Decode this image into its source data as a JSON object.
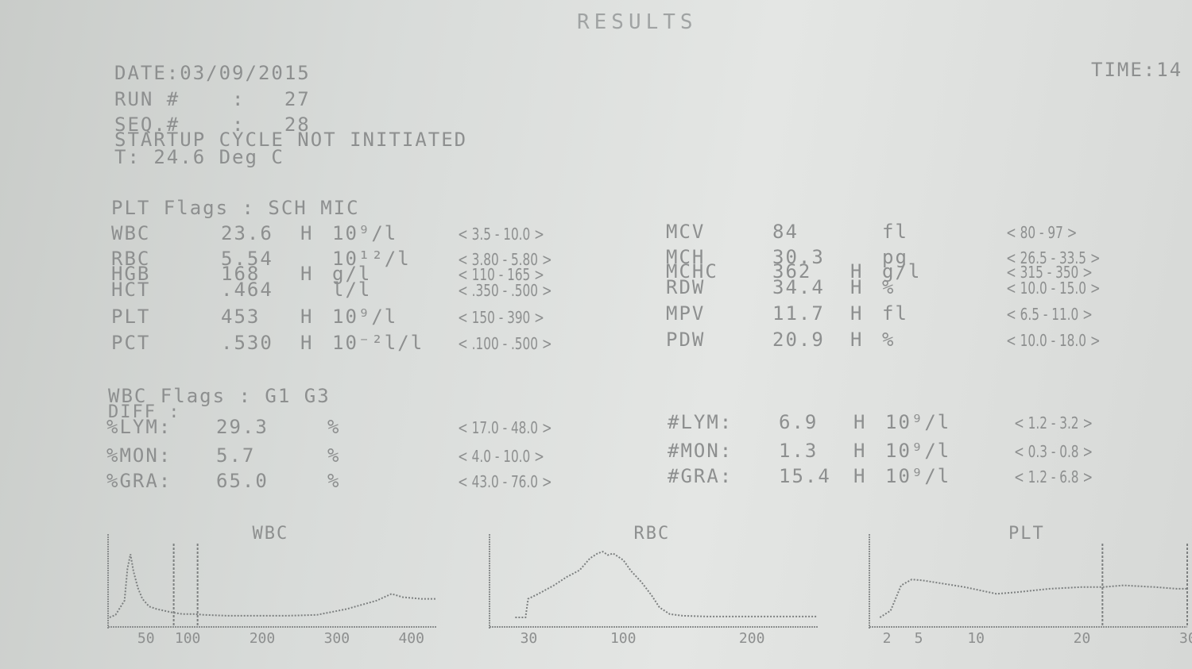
{
  "header": {
    "title": "RESULTS",
    "date": "DATE:03/09/2015",
    "time": "TIME:14",
    "run": "RUN #    :   27",
    "seq": "SEQ.#    :   28",
    "startup": "STARTUP CYCLE NOT INITIATED",
    "temp": "T: 24.6 Deg C"
  },
  "plt_flags": "PLT Flags : SCH MIC",
  "left_params": [
    {
      "name": "WBC",
      "value": "23.6",
      "flag": "H",
      "unit": "10⁹/l",
      "range": "< 3.5 - 10.0 >"
    },
    {
      "name": "RBC",
      "value": "5.54",
      "flag": "",
      "unit": "10¹²/l",
      "range": "< 3.80 - 5.80 >"
    },
    {
      "name": "HGB",
      "value": "168",
      "flag": "H",
      "unit": "g/l",
      "range": "< 110 - 165 >"
    },
    {
      "name": "HCT",
      "value": ".464",
      "flag": "",
      "unit": "l/l",
      "range": "< .350 - .500 >"
    },
    {
      "name": "PLT",
      "value": "453",
      "flag": "H",
      "unit": "10⁹/l",
      "range": "< 150 - 390 >"
    },
    {
      "name": "PCT",
      "value": ".530",
      "flag": "H",
      "unit": "10⁻²l/l",
      "range": "< .100 - .500 >"
    }
  ],
  "right_params": [
    {
      "name": "MCV",
      "value": "84",
      "flag": "",
      "unit": "fl",
      "range": "< 80 - 97 >"
    },
    {
      "name": "MCH",
      "value": "30.3",
      "flag": "",
      "unit": "pg",
      "range": "< 26.5 - 33.5 >"
    },
    {
      "name": "MCHC",
      "value": "362",
      "flag": "H",
      "unit": "g/l",
      "range": "< 315 - 350 >"
    },
    {
      "name": "RDW",
      "value": "34.4",
      "flag": "H",
      "unit": "%",
      "range": "< 10.0 - 15.0 >"
    },
    {
      "name": "MPV",
      "value": "11.7",
      "flag": "H",
      "unit": "fl",
      "range": "< 6.5 - 11.0 >"
    },
    {
      "name": "PDW",
      "value": "20.9",
      "flag": "H",
      "unit": "%",
      "range": "< 10.0 - 18.0 >"
    }
  ],
  "wbc_flags": "WBC Flags : G1 G3",
  "diff_label": "DIFF :",
  "diff_left": [
    {
      "name": "%LYM:",
      "value": "29.3",
      "flag": "",
      "unit": "%",
      "range": "< 17.0 - 48.0 >"
    },
    {
      "name": "%MON:",
      "value": "5.7",
      "flag": "",
      "unit": "%",
      "range": "< 4.0 - 10.0 >"
    },
    {
      "name": "%GRA:",
      "value": "65.0",
      "flag": "",
      "unit": "%",
      "range": "< 43.0 - 76.0 >"
    }
  ],
  "diff_right": [
    {
      "name": "#LYM:",
      "value": "6.9",
      "flag": "H",
      "unit": "10⁹/l",
      "range": "< 1.2 - 3.2 >"
    },
    {
      "name": "#MON:",
      "value": "1.3",
      "flag": "H",
      "unit": "10⁹/l",
      "range": "< 0.3 - 0.8 >"
    },
    {
      "name": "#GRA:",
      "value": "15.4",
      "flag": "H",
      "unit": "10⁹/l",
      "range": "< 1.2 - 6.8 >"
    }
  ],
  "histograms": [
    {
      "title": "WBC",
      "ticks": [
        {
          "v": 50,
          "label": "50"
        },
        {
          "v": 100,
          "label": "100"
        },
        {
          "v": 200,
          "label": "200"
        },
        {
          "v": 300,
          "label": "300"
        },
        {
          "v": 400,
          "label": "400"
        }
      ],
      "xlim": [
        0,
        440
      ],
      "markers": [
        88,
        120
      ],
      "curve": [
        [
          2,
          0
        ],
        [
          10,
          3
        ],
        [
          22,
          20
        ],
        [
          26,
          58
        ],
        [
          30,
          75
        ],
        [
          34,
          55
        ],
        [
          40,
          35
        ],
        [
          46,
          22
        ],
        [
          55,
          13
        ],
        [
          65,
          10
        ],
        [
          75,
          8
        ],
        [
          85,
          6
        ],
        [
          100,
          4
        ],
        [
          115,
          4
        ],
        [
          130,
          3
        ],
        [
          160,
          2
        ],
        [
          200,
          2
        ],
        [
          240,
          2
        ],
        [
          280,
          3
        ],
        [
          320,
          10
        ],
        [
          360,
          20
        ],
        [
          380,
          28
        ],
        [
          395,
          24
        ],
        [
          420,
          22
        ],
        [
          440,
          22
        ]
      ]
    },
    {
      "title": "RBC",
      "ticks": [
        {
          "v": 30,
          "label": "30"
        },
        {
          "v": 100,
          "label": "100"
        },
        {
          "v": 200,
          "label": "200"
        }
      ],
      "xlim": [
        0,
        255
      ],
      "markers": [],
      "curve": [
        [
          20,
          0
        ],
        [
          28,
          0
        ],
        [
          30,
          22
        ],
        [
          38,
          28
        ],
        [
          50,
          38
        ],
        [
          60,
          48
        ],
        [
          70,
          56
        ],
        [
          78,
          70
        ],
        [
          84,
          76
        ],
        [
          88,
          78
        ],
        [
          92,
          74
        ],
        [
          96,
          76
        ],
        [
          104,
          68
        ],
        [
          110,
          55
        ],
        [
          118,
          42
        ],
        [
          126,
          26
        ],
        [
          132,
          12
        ],
        [
          140,
          4
        ],
        [
          150,
          2
        ],
        [
          170,
          1
        ],
        [
          200,
          1
        ],
        [
          240,
          1
        ],
        [
          255,
          1
        ]
      ]
    },
    {
      "title": "PLT",
      "ticks": [
        {
          "v": 2,
          "label": "2"
        },
        {
          "v": 5,
          "label": "5"
        },
        {
          "v": 10,
          "label": "10"
        },
        {
          "v": 20,
          "label": "20"
        },
        {
          "v": 30,
          "label": "30"
        }
      ],
      "xlim": [
        0,
        30
      ],
      "markers": [
        22,
        30
      ],
      "curve": [
        [
          1,
          0
        ],
        [
          2,
          8
        ],
        [
          3,
          38
        ],
        [
          4,
          45
        ],
        [
          5,
          44
        ],
        [
          7,
          40
        ],
        [
          9,
          36
        ],
        [
          12,
          28
        ],
        [
          14,
          30
        ],
        [
          17,
          34
        ],
        [
          20,
          36
        ],
        [
          22,
          36
        ],
        [
          24,
          38
        ],
        [
          27,
          36
        ],
        [
          29,
          34
        ],
        [
          30,
          34
        ]
      ]
    }
  ]
}
